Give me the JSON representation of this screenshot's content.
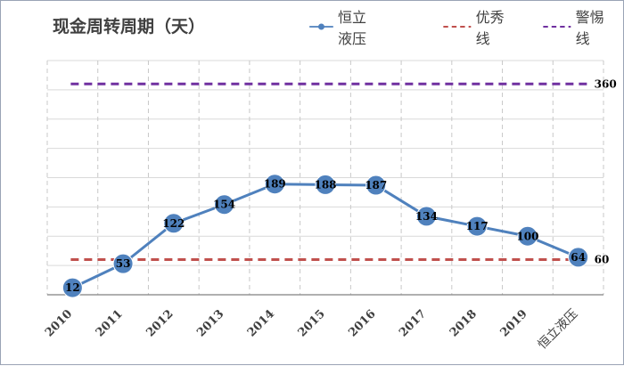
{
  "chart_data": {
    "type": "line",
    "title": "现金周转周期（天）",
    "categories": [
      "2010",
      "2011",
      "2012",
      "2013",
      "2014",
      "2015",
      "2016",
      "2017",
      "2018",
      "2019",
      "恒立液压"
    ],
    "series": [
      {
        "name": "恒立液压",
        "values": [
          12,
          53,
          122,
          154,
          189,
          188,
          187,
          134,
          117,
          100,
          64
        ],
        "color": "#4f81bd",
        "style": "solid-markers"
      },
      {
        "name": "优秀线",
        "values": [
          60,
          60,
          60,
          60,
          60,
          60,
          60,
          60,
          60,
          60,
          60
        ],
        "color": "#c0504d",
        "style": "dashed",
        "label": "60"
      },
      {
        "name": "警惕线",
        "values": [
          360,
          360,
          360,
          360,
          360,
          360,
          360,
          360,
          360,
          360,
          360
        ],
        "color": "#7030a0",
        "style": "dashed",
        "label": "360"
      }
    ],
    "ylim": [
      0,
      400
    ],
    "ytick_step": 50,
    "y_tick_labels_shown": false,
    "grid": true,
    "legend_position": "top-right"
  }
}
